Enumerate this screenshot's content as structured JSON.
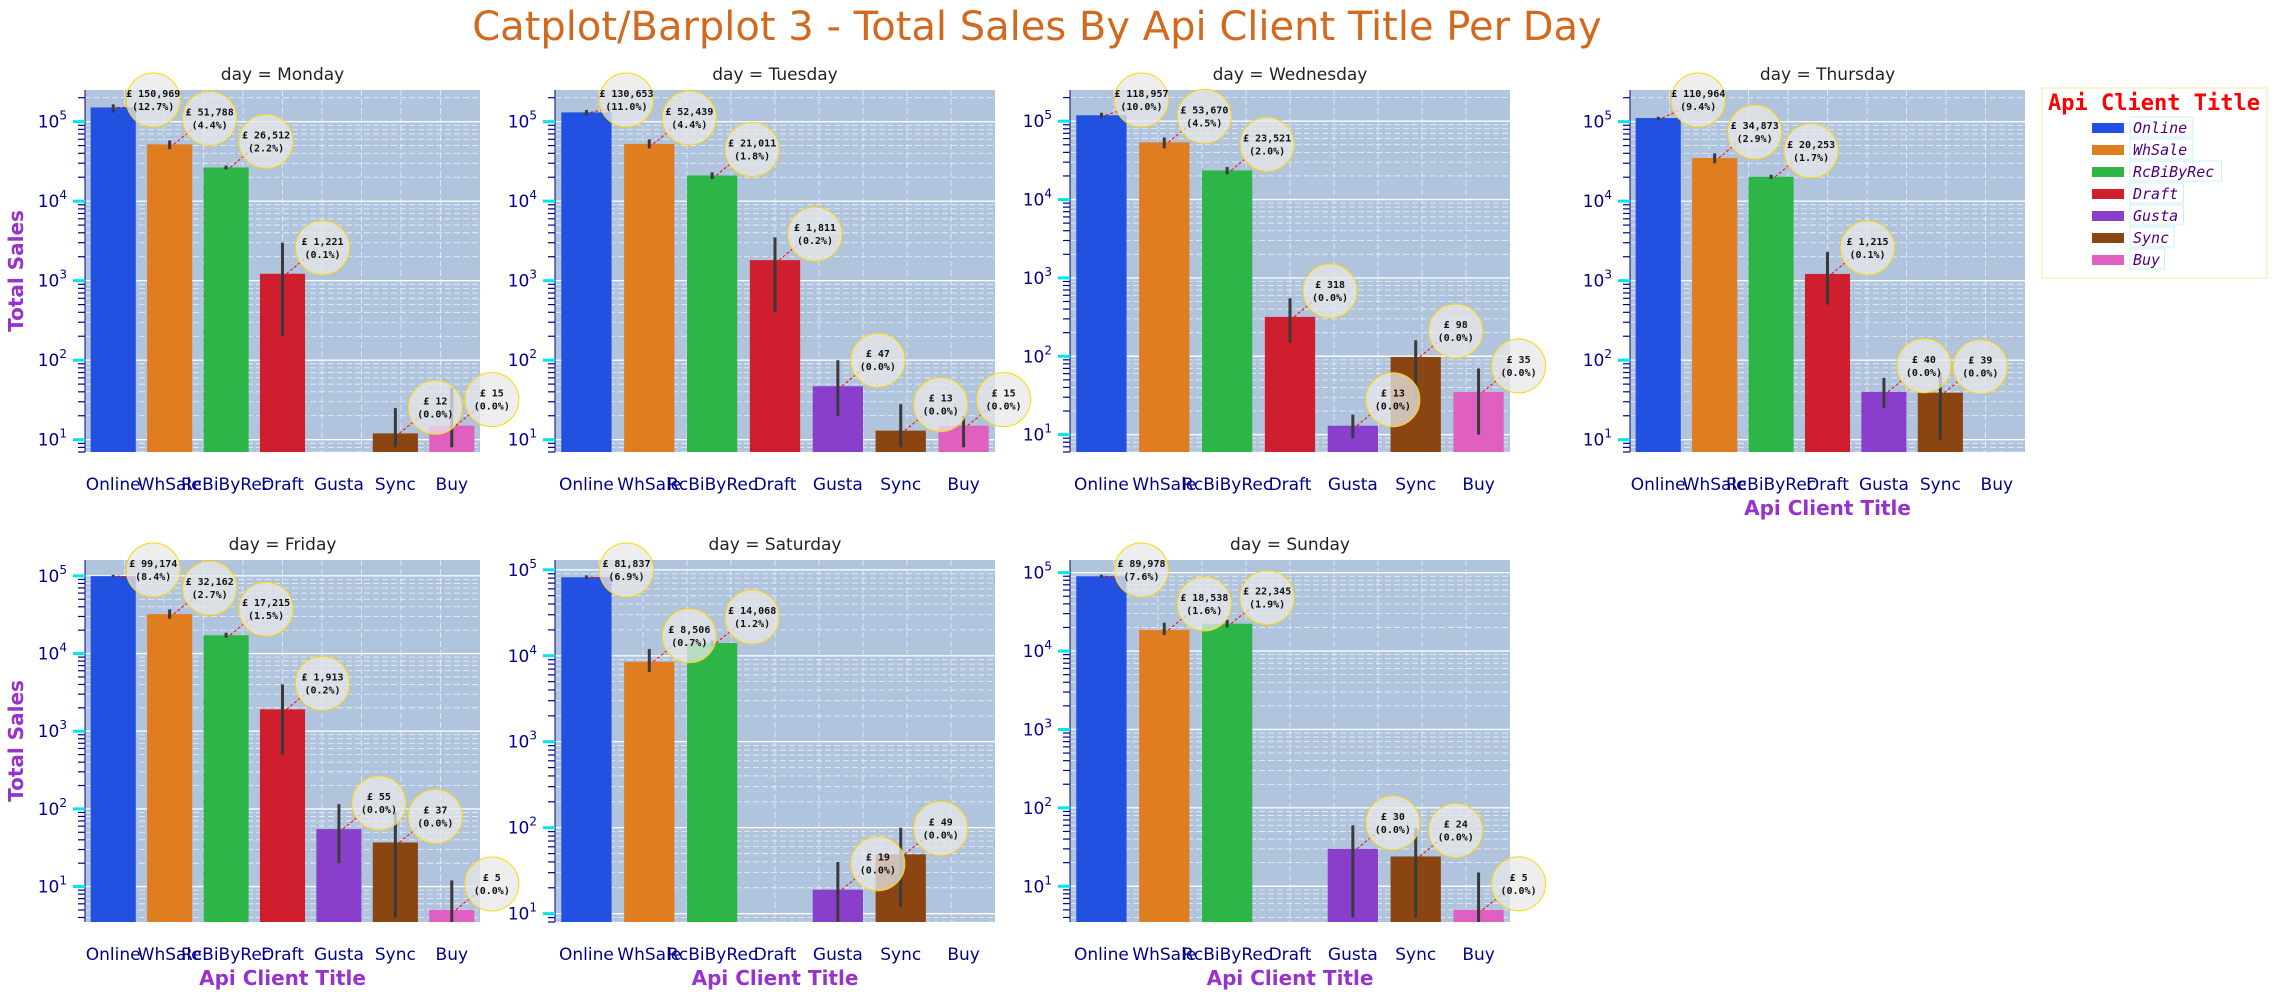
{
  "title": "Catplot/Barplot 3 - Total Sales By Api Client Title Per Day",
  "colors": {
    "title": "#d2691e",
    "axis_label": "#9932cc",
    "tick": "#00008b",
    "axes_bg": "#b0c4de",
    "grid": "#ffffff",
    "legend_title": "#ff0000",
    "legend_text": "#4b0082"
  },
  "chart_data": {
    "type": "bar",
    "layout": "facet grid, 2 rows x 4 columns",
    "yscale": "log",
    "ylabel": "Total Sales",
    "xlabel": "Api Client Title",
    "grid": true,
    "legend": {
      "title": "Api Client Title",
      "placement": "right",
      "entries": [
        "Online",
        "WhSale",
        "RcBiByRec",
        "Draft",
        "Gusta",
        "Sync",
        "Buy"
      ]
    },
    "categories": [
      "Online",
      "WhSale",
      "RcBiByRec",
      "Draft",
      "Gusta",
      "Sync",
      "Buy"
    ],
    "series_colors": [
      "#2250e0",
      "#e07d20",
      "#2db547",
      "#cf1f2e",
      "#8a3fcc",
      "#8b4513",
      "#e060c0"
    ],
    "facets": [
      {
        "title": "day = Monday",
        "ylim": [
          7,
          250000
        ],
        "ylabel": "Total Sales",
        "xlabel": "",
        "values": [
          150969,
          51788,
          26512,
          1221,
          null,
          12,
          15
        ],
        "error_low": [
          130000,
          45000,
          25000,
          200,
          null,
          8,
          8
        ],
        "error_high": [
          165000,
          58000,
          28000,
          3000,
          null,
          25,
          45
        ],
        "annotations": [
          "£ 150,969 (12.7%)",
          "£ 51,788 (4.4%)",
          "£ 26,512 (2.2%)",
          "£ 1,221 (0.1%)",
          "",
          "£ 12 (0.0%)",
          "£ 15 (0.0%)"
        ]
      },
      {
        "title": "day = Tuesday",
        "ylim": [
          7,
          250000
        ],
        "ylabel": "",
        "xlabel": "",
        "values": [
          130653,
          52439,
          21011,
          1811,
          47,
          13,
          15
        ],
        "error_low": [
          120000,
          46000,
          19000,
          400,
          20,
          8,
          8
        ],
        "error_high": [
          140000,
          60000,
          23000,
          3500,
          100,
          28,
          20
        ],
        "annotations": [
          "£ 130,653 (11.0%)",
          "£ 52,439 (4.4%)",
          "£ 21,011 (1.8%)",
          "£ 1,811 (0.2%)",
          "£ 47 (0.0%)",
          "£ 13 (0.0%)",
          "£ 15 (0.0%)"
        ]
      },
      {
        "title": "day = Wednesday",
        "ylim": [
          6,
          250000
        ],
        "ylabel": "",
        "xlabel": "",
        "values": [
          118957,
          53670,
          23521,
          318,
          13,
          98,
          35
        ],
        "error_low": [
          110000,
          45000,
          21000,
          150,
          9,
          30,
          10
        ],
        "error_high": [
          128000,
          62000,
          26000,
          550,
          18,
          160,
          70
        ],
        "annotations": [
          "£ 118,957 (10.0%)",
          "£ 53,670 (4.5%)",
          "£ 23,521 (2.0%)",
          "£ 318 (0.0%)",
          "£ 13 (0.0%)",
          "£ 98 (0.0%)",
          "£ 35 (0.0%)"
        ]
      },
      {
        "title": "day = Thursday",
        "ylim": [
          7,
          250000
        ],
        "ylabel": "",
        "xlabel": "Api Client Title",
        "values": [
          110964,
          34873,
          20253,
          1215,
          40,
          39,
          null
        ],
        "error_low": [
          105000,
          30000,
          19000,
          500,
          25,
          10,
          null
        ],
        "error_high": [
          115000,
          40000,
          21500,
          2300,
          60,
          70,
          null
        ],
        "annotations": [
          "£ 110,964 (9.4%)",
          "£ 34,873 (2.9%)",
          "£ 20,253 (1.7%)",
          "£ 1,215 (0.1%)",
          "£ 40 (0.0%)",
          "£ 39 (0.0%)",
          ""
        ]
      },
      {
        "title": "day = Friday",
        "ylim": [
          3.5,
          160000
        ],
        "ylabel": "Total Sales",
        "xlabel": "Api Client Title",
        "values": [
          99174,
          32162,
          17215,
          1913,
          55,
          37,
          5
        ],
        "error_low": [
          95000,
          28000,
          16000,
          500,
          20,
          4,
          3
        ],
        "error_high": [
          103000,
          37000,
          18500,
          4000,
          115,
          90,
          12
        ],
        "annotations": [
          "£ 99,174 (8.4%)",
          "£ 32,162 (2.7%)",
          "£ 17,215 (1.5%)",
          "£ 1,913 (0.2%)",
          "£ 55 (0.0%)",
          "£ 37 (0.0%)",
          "£ 5 (0.0%)"
        ]
      },
      {
        "title": "day = Saturday",
        "ylim": [
          8,
          130000
        ],
        "ylabel": "",
        "xlabel": "Api Client Title",
        "values": [
          81837,
          8506,
          14068,
          null,
          19,
          49,
          null
        ],
        "error_low": [
          78000,
          6500,
          13000,
          null,
          8,
          12,
          null
        ],
        "error_high": [
          86000,
          12000,
          15000,
          null,
          40,
          100,
          null
        ],
        "annotations": [
          "£ 81,837 (6.9%)",
          "£ 8,506 (0.7%)",
          "£ 14,068 (1.2%)",
          "",
          "£ 19 (0.0%)",
          "£ 49 (0.0%)",
          ""
        ]
      },
      {
        "title": "day = Sunday",
        "ylim": [
          3.5,
          145000
        ],
        "ylabel": "",
        "xlabel": "Api Client Title",
        "values": [
          89978,
          18538,
          22345,
          null,
          30,
          24,
          5
        ],
        "error_low": [
          86000,
          16000,
          20000,
          null,
          4,
          4,
          2
        ],
        "error_high": [
          94000,
          23000,
          25000,
          null,
          60,
          55,
          15
        ],
        "annotations": [
          "£ 89,978 (7.6%)",
          "£ 18,538 (1.6%)",
          "£ 22,345 (1.9%)",
          "",
          "£ 30 (0.0%)",
          "£ 24 (0.0%)",
          "£ 5 (0.0%)"
        ]
      }
    ]
  }
}
